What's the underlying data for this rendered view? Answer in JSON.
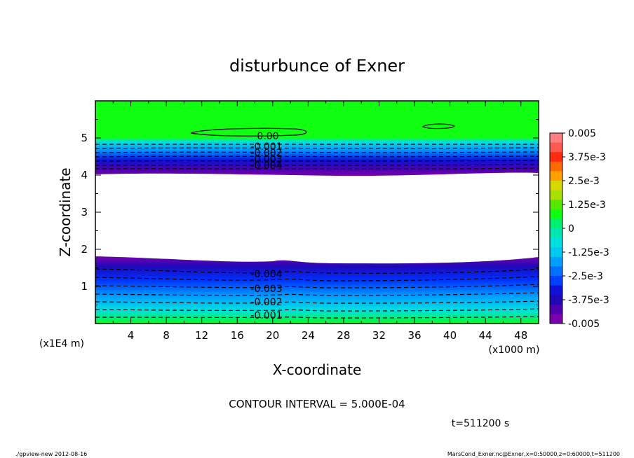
{
  "chart_data": {
    "type": "heatmap",
    "title": "disturbunce of Exner",
    "xlabel": "X-coordinate",
    "ylabel": "Z-coordinate",
    "x_unit": "(x1000 m)",
    "y_unit": "(x1E4 m)",
    "xlim": [
      0,
      50
    ],
    "ylim": [
      0,
      6
    ],
    "x_ticks": [
      4,
      8,
      12,
      16,
      20,
      24,
      28,
      32,
      36,
      40,
      44,
      48
    ],
    "y_ticks": [
      1,
      2,
      3,
      4,
      5
    ],
    "colorbar": {
      "labels": [
        "0.005",
        "3.75e-3",
        "2.5e-3",
        "1.25e-3",
        "0",
        "-1.25e-3",
        "-2.5e-3",
        "-3.75e-3",
        "-0.005"
      ],
      "colors": [
        "#ff8080",
        "#ff5a50",
        "#ff2a10",
        "#ff6a00",
        "#ffa000",
        "#d8d800",
        "#a8e000",
        "#58e800",
        "#10ff10",
        "#00f070",
        "#00e8b0",
        "#00e0e0",
        "#00c8f0",
        "#00a0ff",
        "#0070ff",
        "#0040ff",
        "#1010d8",
        "#2008b8",
        "#5000b0",
        "#7a00b0"
      ]
    },
    "contour_labels": [
      "0.00",
      "-0.001",
      "-0.002",
      "-0.003",
      "-0.004",
      "-0.001",
      "-0.002",
      "-0.003",
      "-0.004"
    ],
    "contour_interval": "CONTOUR INTERVAL = 5.000E-04",
    "time": "t=511200 s",
    "footer_left": "./gpview-new  2012-08-16",
    "footer_right": "MarsCond_Exner.nc@Exner,x=0:50000,z=0:60000,t=511200"
  }
}
